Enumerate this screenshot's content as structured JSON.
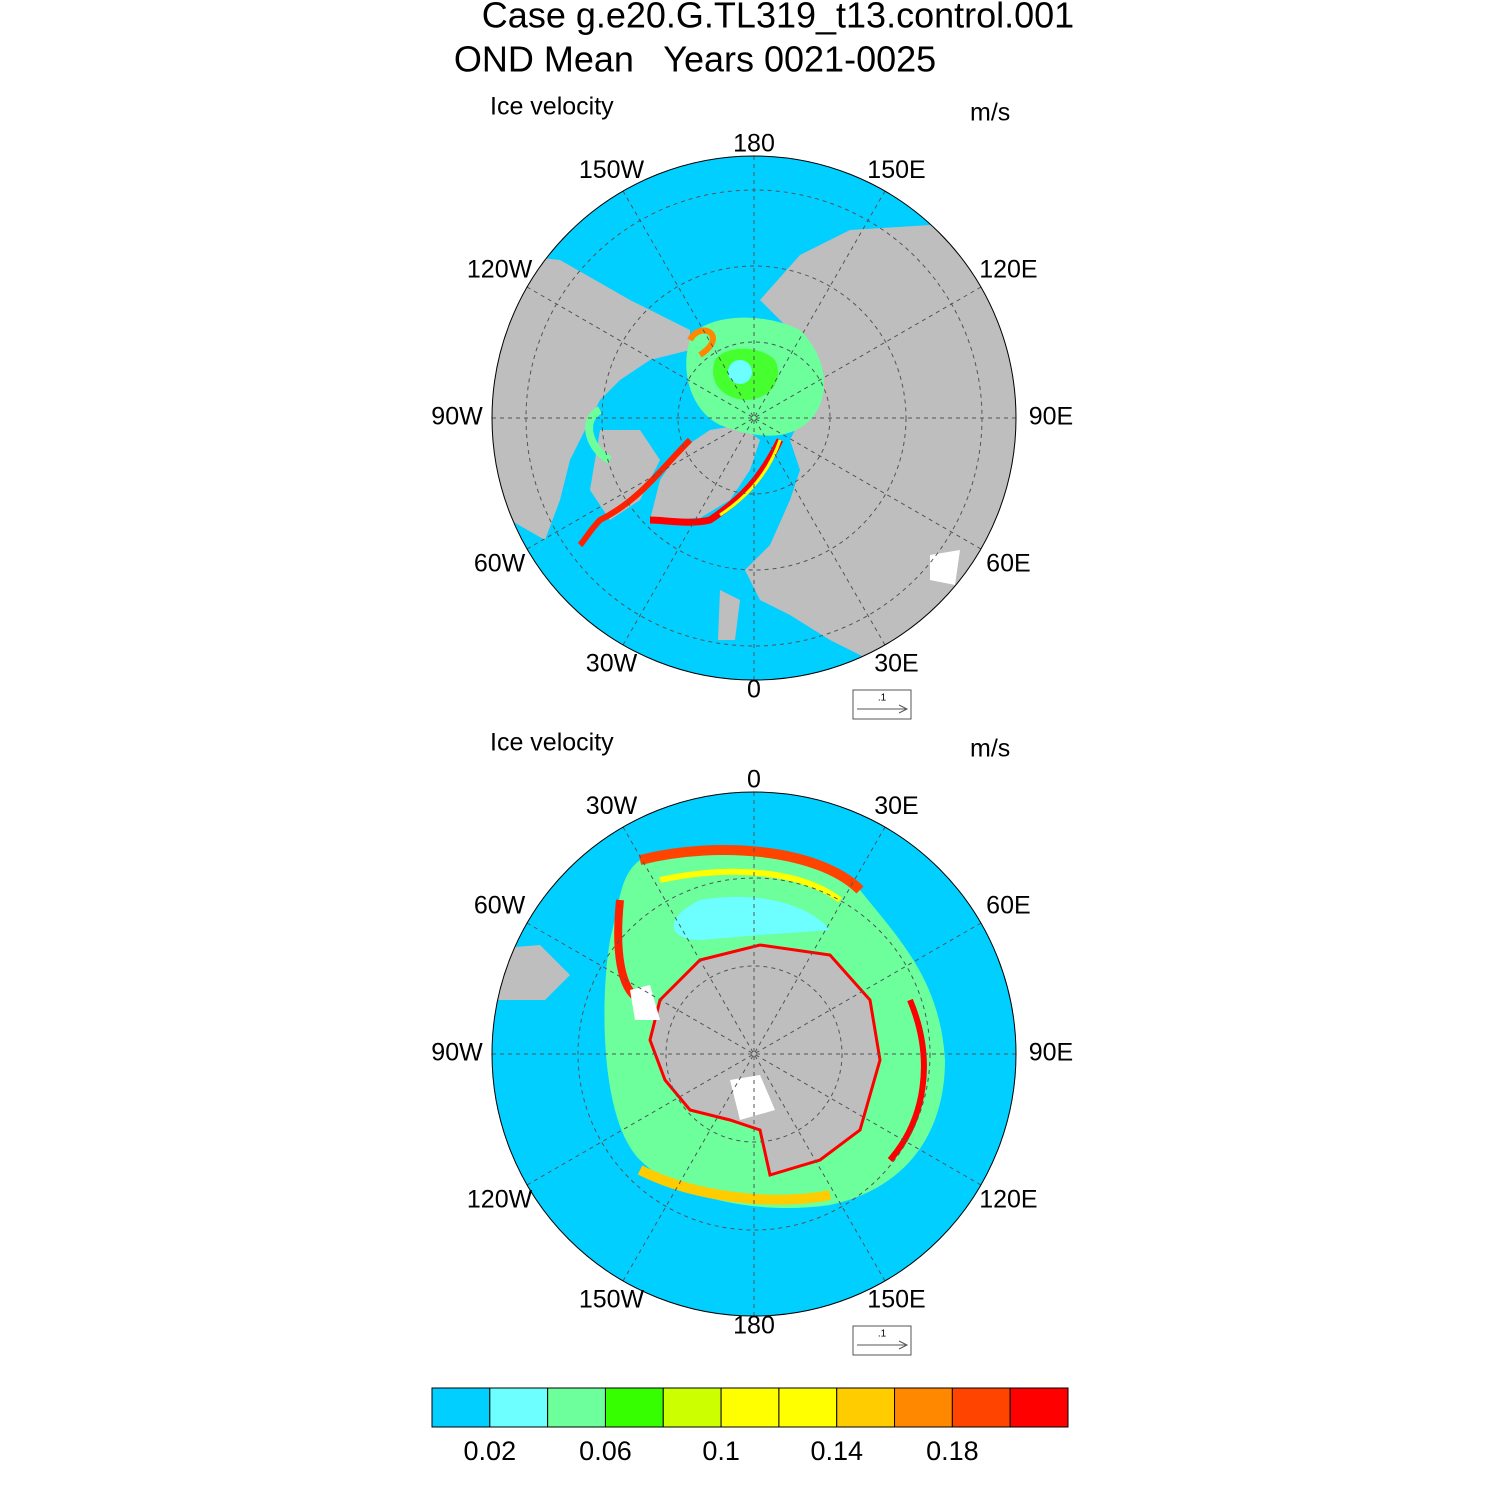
{
  "title": "Case g.e20.G.TL319_t13.control.001",
  "subtitle": "OND Mean   Years 0021-0025",
  "panels": [
    {
      "label": "Ice velocity",
      "units": "m/s",
      "lon_labels": [
        "180",
        "150E",
        "120E",
        "90E",
        "60E",
        "30E",
        "0",
        "30W",
        "60W",
        "90W",
        "120W",
        "150W"
      ],
      "reference_vector": ".1"
    },
    {
      "label": "Ice velocity",
      "units": "m/s",
      "lon_labels": [
        "0",
        "30E",
        "60E",
        "90E",
        "120E",
        "150E",
        "180",
        "150W",
        "120W",
        "90W",
        "60W",
        "30W"
      ],
      "reference_vector": ".1"
    }
  ],
  "colorbar": {
    "colors": [
      "#00cfff",
      "#6dffff",
      "#6cff9c",
      "#36ff00",
      "#ccff00",
      "#ffff00",
      "#ffff00",
      "#ffcc00",
      "#ff8800",
      "#ff4400",
      "#ff0000"
    ],
    "lim": [
      0,
      0.22
    ],
    "ticks": [
      0.02,
      0.06,
      0.1,
      0.14,
      0.18
    ]
  }
}
